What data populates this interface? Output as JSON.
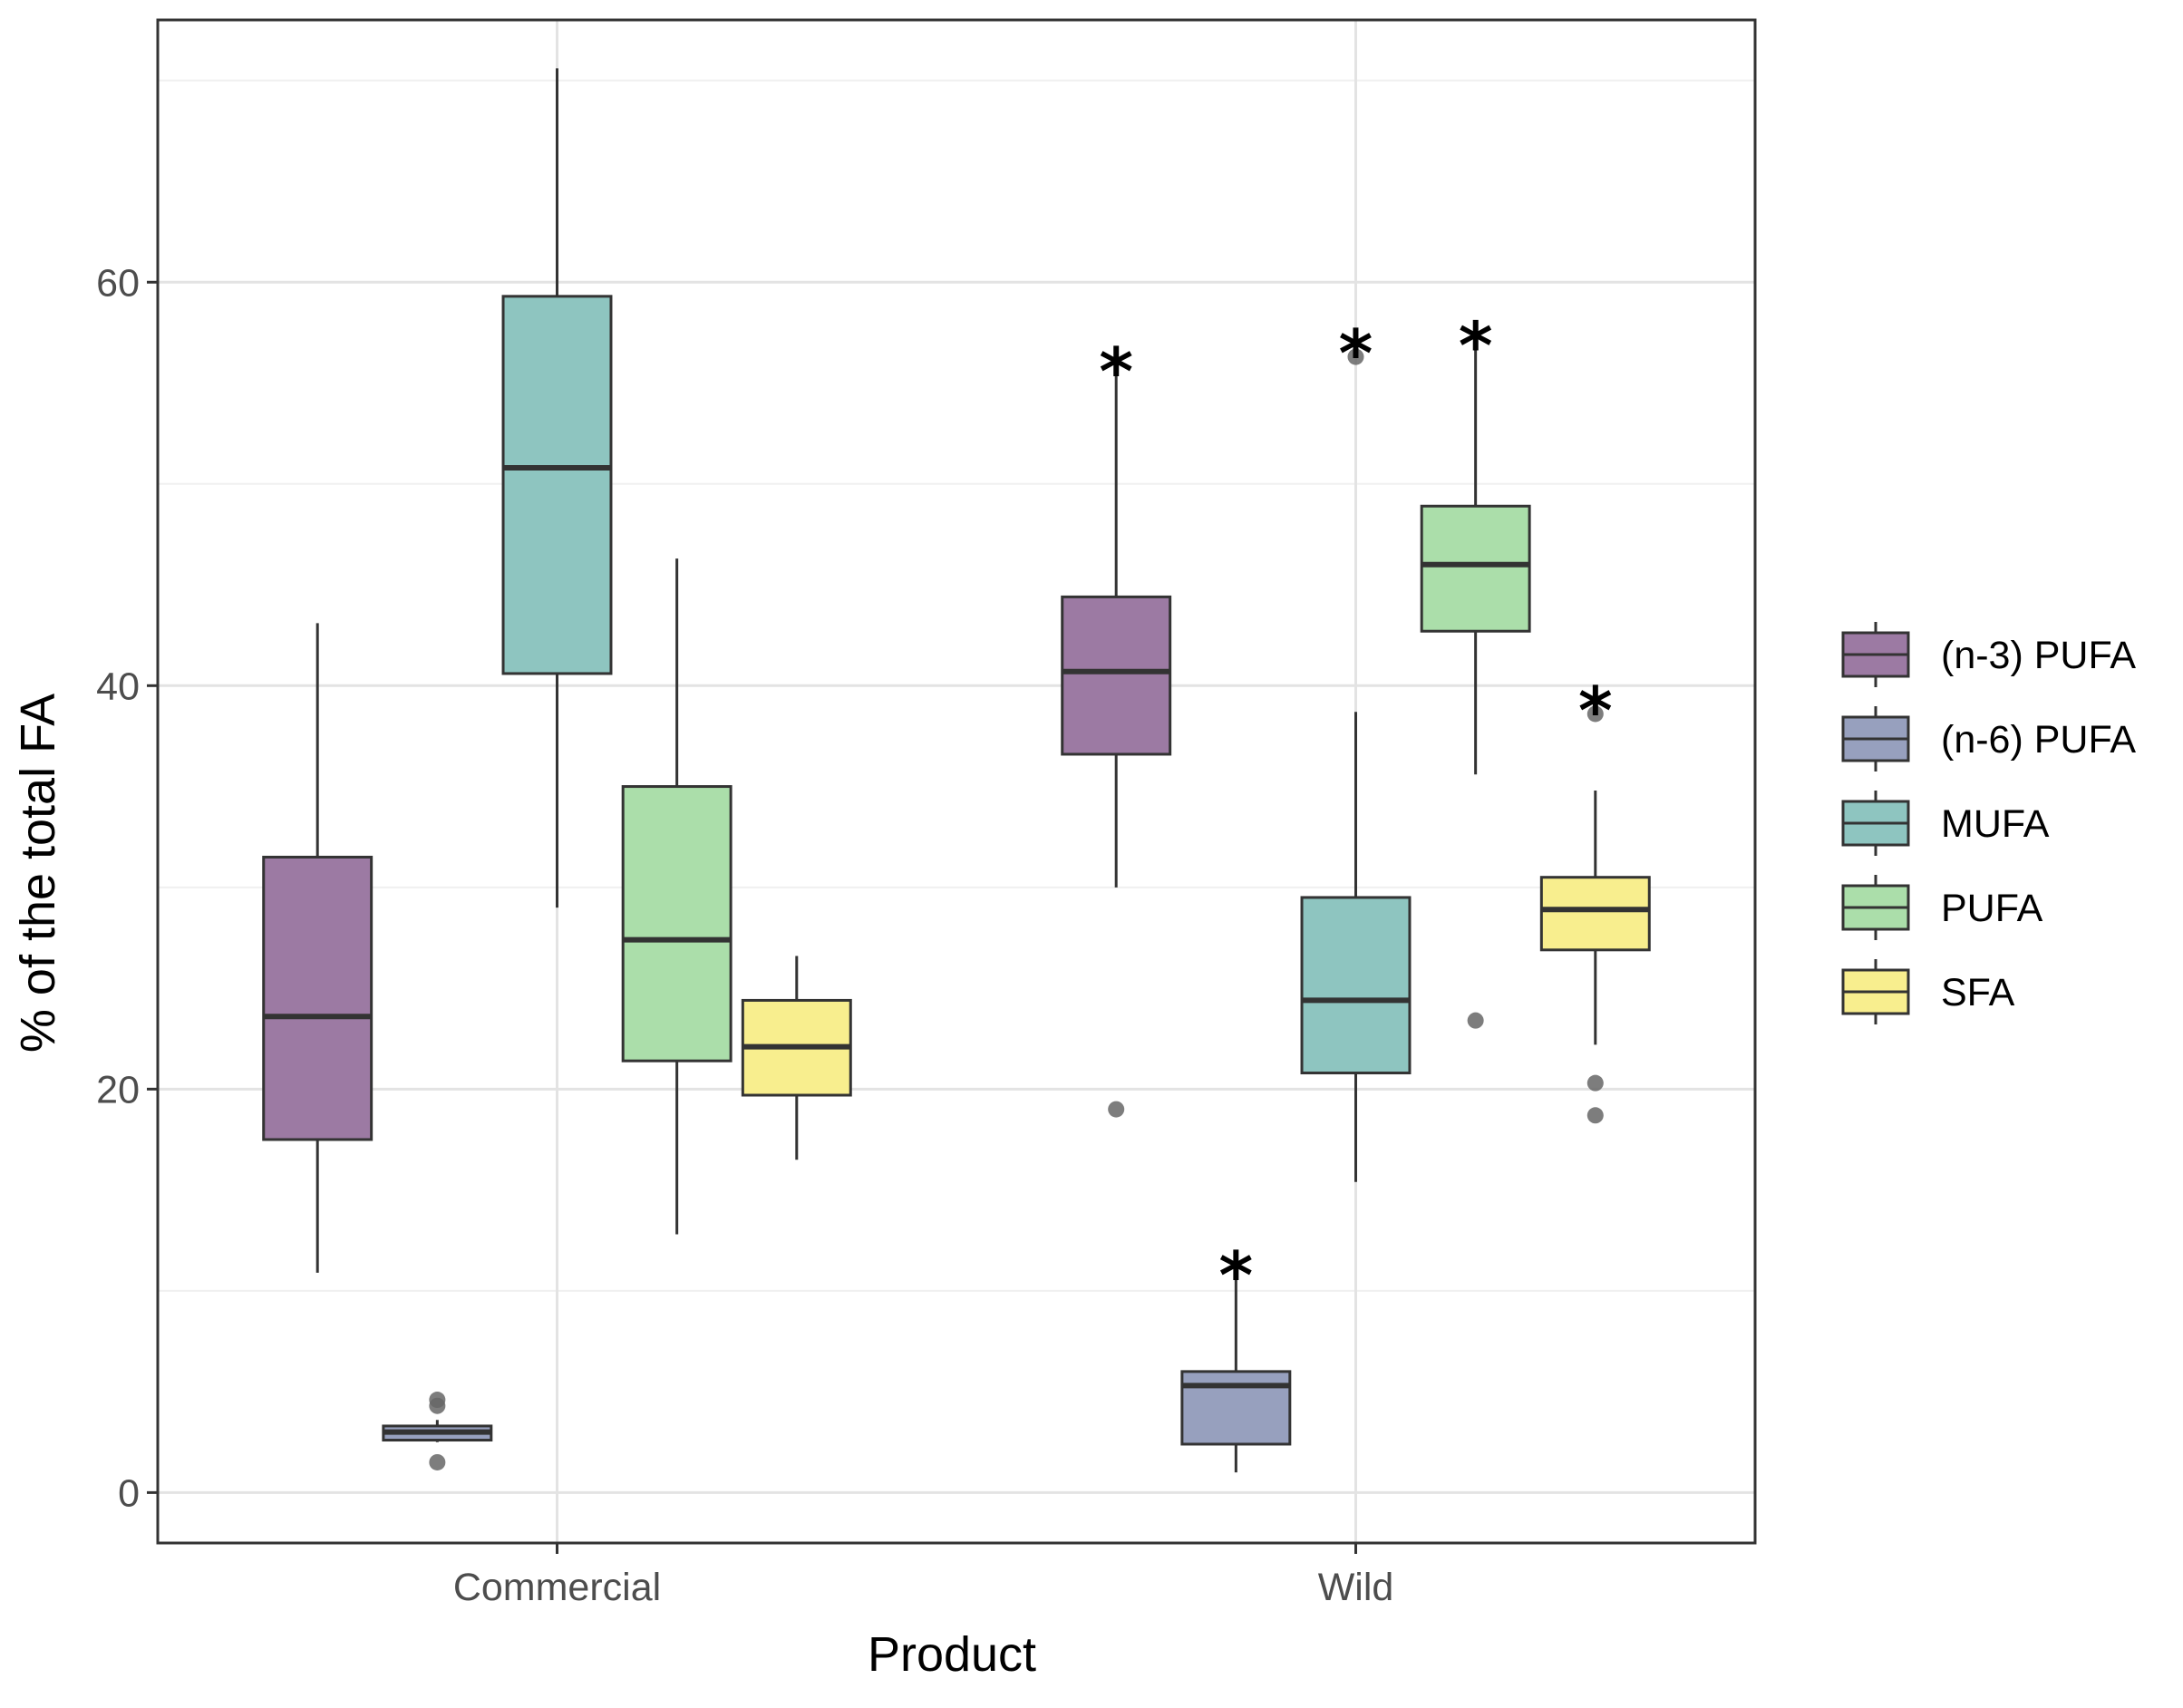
{
  "chart_data": {
    "type": "boxplot",
    "xlabel": "Product",
    "ylabel": "% of the total FA",
    "categories": [
      "Commercial",
      "Wild"
    ],
    "ylim": [
      -2.5,
      73
    ],
    "yticks": [
      0,
      20,
      40,
      60
    ],
    "grid": true,
    "legend_position": "right",
    "significance_marker": "*",
    "series": [
      {
        "name": "(n-3) PUFA",
        "color": "#9c7aa3",
        "boxes": [
          {
            "category": "Commercial",
            "whisker_low": 10.9,
            "q1": 17.5,
            "median": 23.6,
            "q3": 31.5,
            "whisker_high": 43.1,
            "outliers": [],
            "significant": false
          },
          {
            "category": "Wild",
            "whisker_low": 30.0,
            "q1": 36.6,
            "median": 40.7,
            "q3": 44.4,
            "whisker_high": 55.4,
            "outliers": [
              19.0
            ],
            "significant": true
          }
        ]
      },
      {
        "name": "(n-6) PUFA",
        "color": "#97a0be",
        "boxes": [
          {
            "category": "Commercial",
            "whisker_low": 2.5,
            "q1": 2.6,
            "median": 3.0,
            "q3": 3.3,
            "whisker_high": 3.6,
            "outliers": [
              1.5,
              4.3,
              4.6
            ],
            "significant": false
          },
          {
            "category": "Wild",
            "whisker_low": 1.0,
            "q1": 2.4,
            "median": 5.3,
            "q3": 6.0,
            "whisker_high": 10.6,
            "outliers": [],
            "significant": true
          }
        ]
      },
      {
        "name": "MUFA",
        "color": "#8ec5c0",
        "boxes": [
          {
            "category": "Commercial",
            "whisker_low": 29.0,
            "q1": 40.6,
            "median": 50.8,
            "q3": 59.3,
            "whisker_high": 70.6,
            "outliers": [],
            "significant": false
          },
          {
            "category": "Wild",
            "whisker_low": 15.4,
            "q1": 20.8,
            "median": 24.4,
            "q3": 29.5,
            "whisker_high": 38.7,
            "outliers": [
              56.3
            ],
            "significant": true
          }
        ]
      },
      {
        "name": "PUFA",
        "color": "#abdeaa",
        "boxes": [
          {
            "category": "Commercial",
            "whisker_low": 12.8,
            "q1": 21.4,
            "median": 27.4,
            "q3": 35.0,
            "whisker_high": 46.3,
            "outliers": [],
            "significant": false
          },
          {
            "category": "Wild",
            "whisker_low": 35.6,
            "q1": 42.7,
            "median": 46.0,
            "q3": 48.9,
            "whisker_high": 56.7,
            "outliers": [
              23.4
            ],
            "significant": true
          }
        ]
      },
      {
        "name": "SFA",
        "color": "#f8ee8e",
        "boxes": [
          {
            "category": "Commercial",
            "whisker_low": 16.5,
            "q1": 19.7,
            "median": 22.1,
            "q3": 24.4,
            "whisker_high": 26.6,
            "outliers": [],
            "significant": false
          },
          {
            "category": "Wild",
            "whisker_low": 22.2,
            "q1": 26.9,
            "median": 28.9,
            "q3": 30.5,
            "whisker_high": 34.8,
            "outliers": [
              18.7,
              20.3,
              38.6
            ],
            "significant": true
          }
        ]
      }
    ]
  }
}
